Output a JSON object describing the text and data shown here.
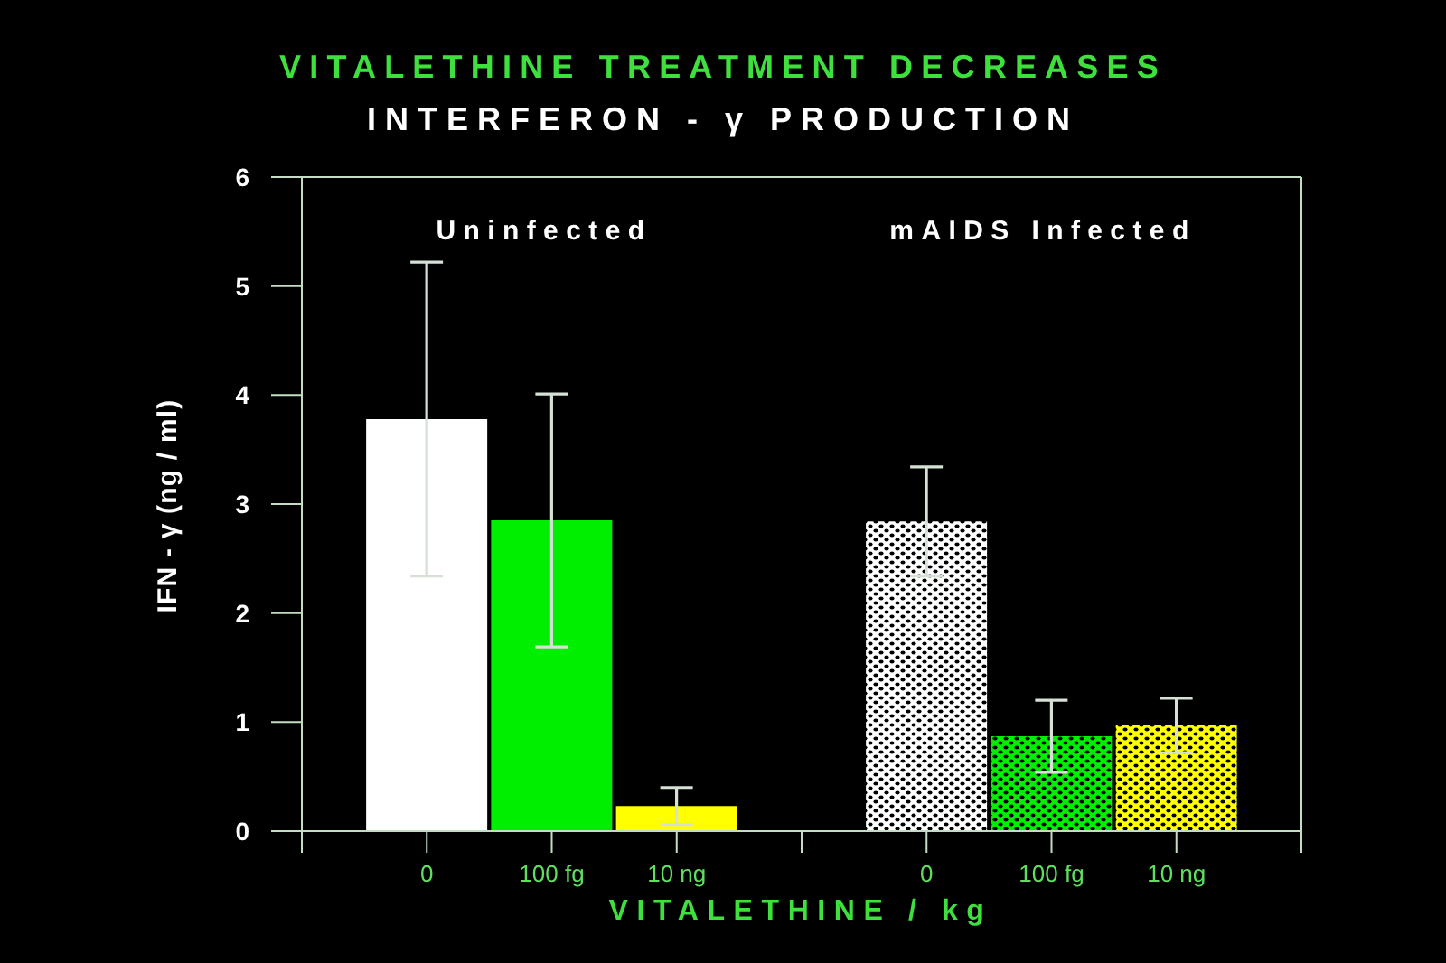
{
  "chart_data": {
    "type": "bar",
    "title": "VITALETHINE TREATMENT DECREASES",
    "subtitle": "INTERFERON - γ PRODUCTION",
    "xlabel": "VITALETHINE / kg",
    "ylabel": "IFN - γ (ng / ml)",
    "categories": [
      "0",
      "100 fg",
      "10 ng",
      null,
      "0",
      "100 fg",
      "10 ng"
    ],
    "series": [
      {
        "colors": [
          "#ffffff",
          "#00ee00",
          "#ffff00",
          null,
          null,
          null,
          null
        ],
        "values": [
          3.78,
          2.85,
          0.23,
          null,
          null,
          null,
          null
        ],
        "errors": [
          1.44,
          1.16,
          0.17,
          null,
          null,
          null,
          null
        ]
      },
      {
        "colors": [
          null,
          null,
          null,
          null,
          "#ffffff",
          "#00ee00",
          "#ffff00"
        ],
        "values": [
          null,
          null,
          null,
          null,
          2.84,
          0.87,
          0.97
        ],
        "errors": [
          null,
          null,
          null,
          null,
          0.5,
          0.33,
          0.25
        ]
      }
    ],
    "annotations": [
      "Uninfected",
      "mAIDS Infected"
    ],
    "ylim": [
      0,
      6
    ],
    "yticks": [
      0,
      1,
      2,
      3,
      4,
      5,
      6
    ]
  }
}
